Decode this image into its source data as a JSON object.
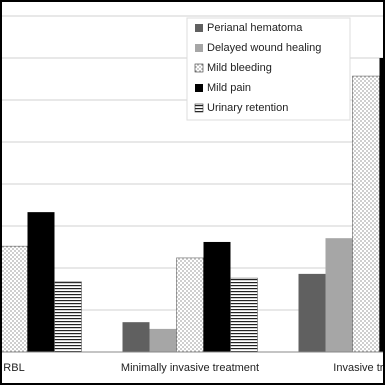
{
  "chart_data": {
    "type": "bar",
    "categories": [
      "RBL",
      "Minimally invasive treatment",
      "Invasive treat"
    ],
    "series": [
      {
        "name": "Perianal hematoma",
        "color": "#606060",
        "values": [
          null,
          0.71,
          1.86
        ]
      },
      {
        "name": "Delayed wound healing",
        "color": "#a6a6a6",
        "values": [
          null,
          0.55,
          2.71
        ]
      },
      {
        "name": "Mild bleeding",
        "color": "#ffffff",
        "pattern": "dots",
        "values": [
          2.52,
          2.24,
          6.57
        ]
      },
      {
        "name": "Mild pain",
        "color": "#000000",
        "values": [
          3.33,
          2.62,
          7.0
        ]
      },
      {
        "name": "Urinary retention",
        "color": "#ffffff",
        "pattern": "hlines",
        "values": [
          1.67,
          1.76,
          null
        ]
      }
    ],
    "ylim": [
      0,
      8
    ],
    "yticks": [
      0,
      1,
      2,
      3,
      4,
      5,
      6,
      7,
      8
    ],
    "grid": true,
    "legend": "upper right"
  }
}
